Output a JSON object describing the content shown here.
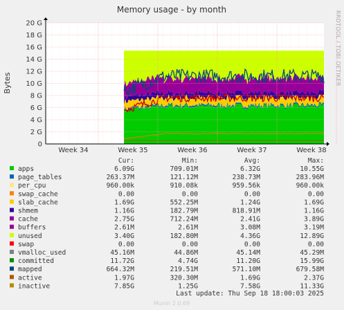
{
  "chart_data": {
    "type": "area",
    "title": "Memory usage - by month",
    "ylabel": "Bytes",
    "side_label": "RRDTOOL / TOBI OETIKER",
    "yticks": [
      "0",
      "2 G",
      "4 G",
      "6 G",
      "8 G",
      "10 G",
      "12 G",
      "14 G",
      "16 G",
      "18 G",
      "20 G"
    ],
    "ylim": [
      0,
      20
    ],
    "y_unit": "G",
    "xticks": [
      "Week 34",
      "Week 35",
      "Week 36",
      "Week 37",
      "Week 38"
    ],
    "data_start_week": 34.85,
    "grid": true,
    "columns": [
      "Cur:",
      "Min:",
      "Avg:",
      "Max:"
    ],
    "series": [
      {
        "name": "apps",
        "color": "#00cc00",
        "cur": "6.09G",
        "min": "709.01M",
        "avg": "6.32G",
        "max": "10.55G",
        "approx_level": 6.3
      },
      {
        "name": "page_tables",
        "color": "#0066b3",
        "cur": "263.37M",
        "min": "121.12M",
        "avg": "238.73M",
        "max": "283.96M",
        "approx_level": 0.24
      },
      {
        "name": "per_cpu",
        "color": "#ffe680",
        "cur": "960.00k",
        "min": "910.08k",
        "avg": "959.56k",
        "max": "960.00k",
        "approx_level": 0.001
      },
      {
        "name": "swap_cache",
        "color": "#ff8000",
        "cur": "0.00",
        "min": "0.00",
        "avg": "0.00",
        "max": "0.00",
        "approx_level": 0
      },
      {
        "name": "slab_cache",
        "color": "#ffcc00",
        "cur": "1.69G",
        "min": "552.25M",
        "avg": "1.24G",
        "max": "1.69G",
        "approx_level": 1.2
      },
      {
        "name": "shmem",
        "color": "#330099",
        "cur": "1.16G",
        "min": "182.79M",
        "avg": "818.91M",
        "max": "1.16G",
        "approx_level": 0.8
      },
      {
        "name": "cache",
        "color": "#990099",
        "cur": "2.75G",
        "min": "712.24M",
        "avg": "2.41G",
        "max": "3.89G",
        "approx_level": 2.4
      },
      {
        "name": "buffers",
        "color": "#990099",
        "cur": "2.61M",
        "min": "2.61M",
        "avg": "3.08M",
        "max": "3.19M",
        "approx_level": 0.003
      },
      {
        "name": "unused",
        "color": "#ccff00",
        "cur": "3.40G",
        "min": "182.80M",
        "avg": "4.36G",
        "max": "12.89G",
        "approx_level": 4.4
      },
      {
        "name": "swap",
        "color": "#ff0000",
        "cur": "0.00",
        "min": "0.00",
        "avg": "0.00",
        "max": "0.00",
        "approx_level": 0
      },
      {
        "name": "vmalloc_used",
        "color": "#808080",
        "cur": "45.16M",
        "min": "44.86M",
        "avg": "45.14M",
        "max": "45.29M",
        "approx_level": 0.045
      },
      {
        "name": "committed",
        "color": "#008f00",
        "cur": "11.72G",
        "min": "4.74G",
        "avg": "11.20G",
        "max": "15.99G",
        "approx_level": 11.2
      },
      {
        "name": "mapped",
        "color": "#00487d",
        "cur": "664.32M",
        "min": "219.51M",
        "avg": "571.10M",
        "max": "679.58M",
        "approx_level": 0.57
      },
      {
        "name": "active",
        "color": "#b35a00",
        "cur": "1.97G",
        "min": "320.30M",
        "avg": "1.69G",
        "max": "2.37G",
        "approx_level": 1.7
      },
      {
        "name": "inactive",
        "color": "#b38f00",
        "cur": "7.85G",
        "min": "1.25G",
        "avg": "7.58G",
        "max": "11.33G",
        "approx_level": 7.6
      }
    ],
    "last_update": "Last update: Thu Sep 18 18:00:03 2025",
    "footer": "Munin 2.0.69"
  },
  "colors": {
    "plot_bg": "#ffffff",
    "page_bg": "#f0f0f0",
    "grid": "#ff9999",
    "minor_grid": "#dddddd",
    "active_line": "#c80000",
    "inactive_line": "#b38f00",
    "committed_line": "#00487d"
  }
}
